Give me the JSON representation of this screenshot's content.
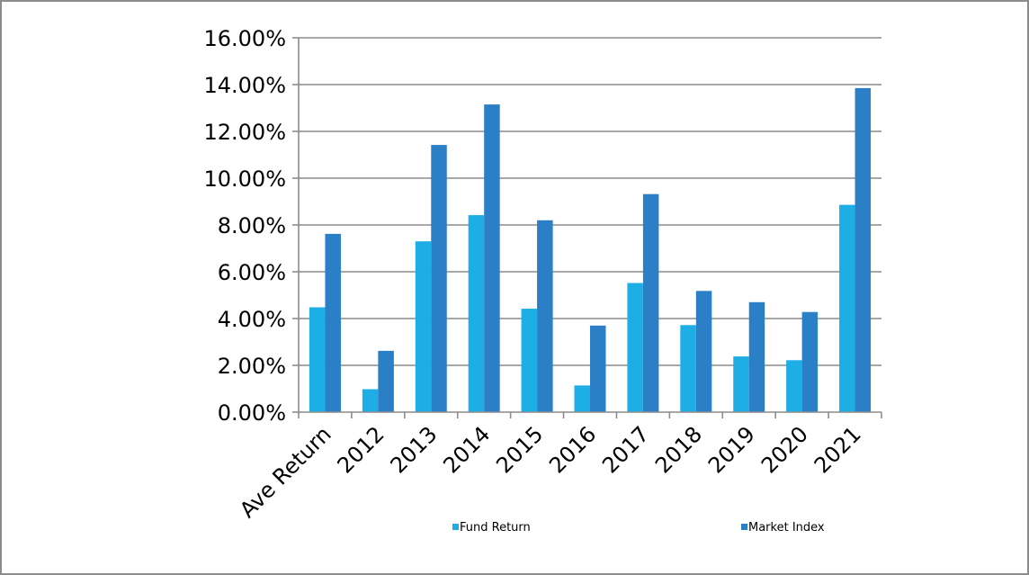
{
  "chart_data": {
    "type": "bar",
    "categories": [
      "Ave Return",
      "2012",
      "2013",
      "2014",
      "2015",
      "2016",
      "2017",
      "2018",
      "2019",
      "2020",
      "2021"
    ],
    "series": [
      {
        "name": "Fund Return",
        "color": "#1eaee6",
        "values": [
          4.48,
          0.98,
          7.3,
          8.42,
          4.42,
          1.14,
          5.52,
          3.72,
          2.38,
          2.22,
          8.86
        ]
      },
      {
        "name": "Market Index",
        "color": "#2a7fc6",
        "values": [
          7.62,
          2.62,
          11.42,
          13.15,
          8.2,
          3.7,
          9.32,
          5.18,
          4.7,
          4.28,
          13.85
        ]
      }
    ],
    "y_ticks": [
      "0.00%",
      "2.00%",
      "4.00%",
      "6.00%",
      "8.00%",
      "10.00%",
      "12.00%",
      "14.00%",
      "16.00%"
    ],
    "ylim": [
      0,
      16
    ],
    "y_unit": "%",
    "grid": true,
    "legend_position": "bottom",
    "title": "",
    "xlabel": "",
    "ylabel": ""
  }
}
